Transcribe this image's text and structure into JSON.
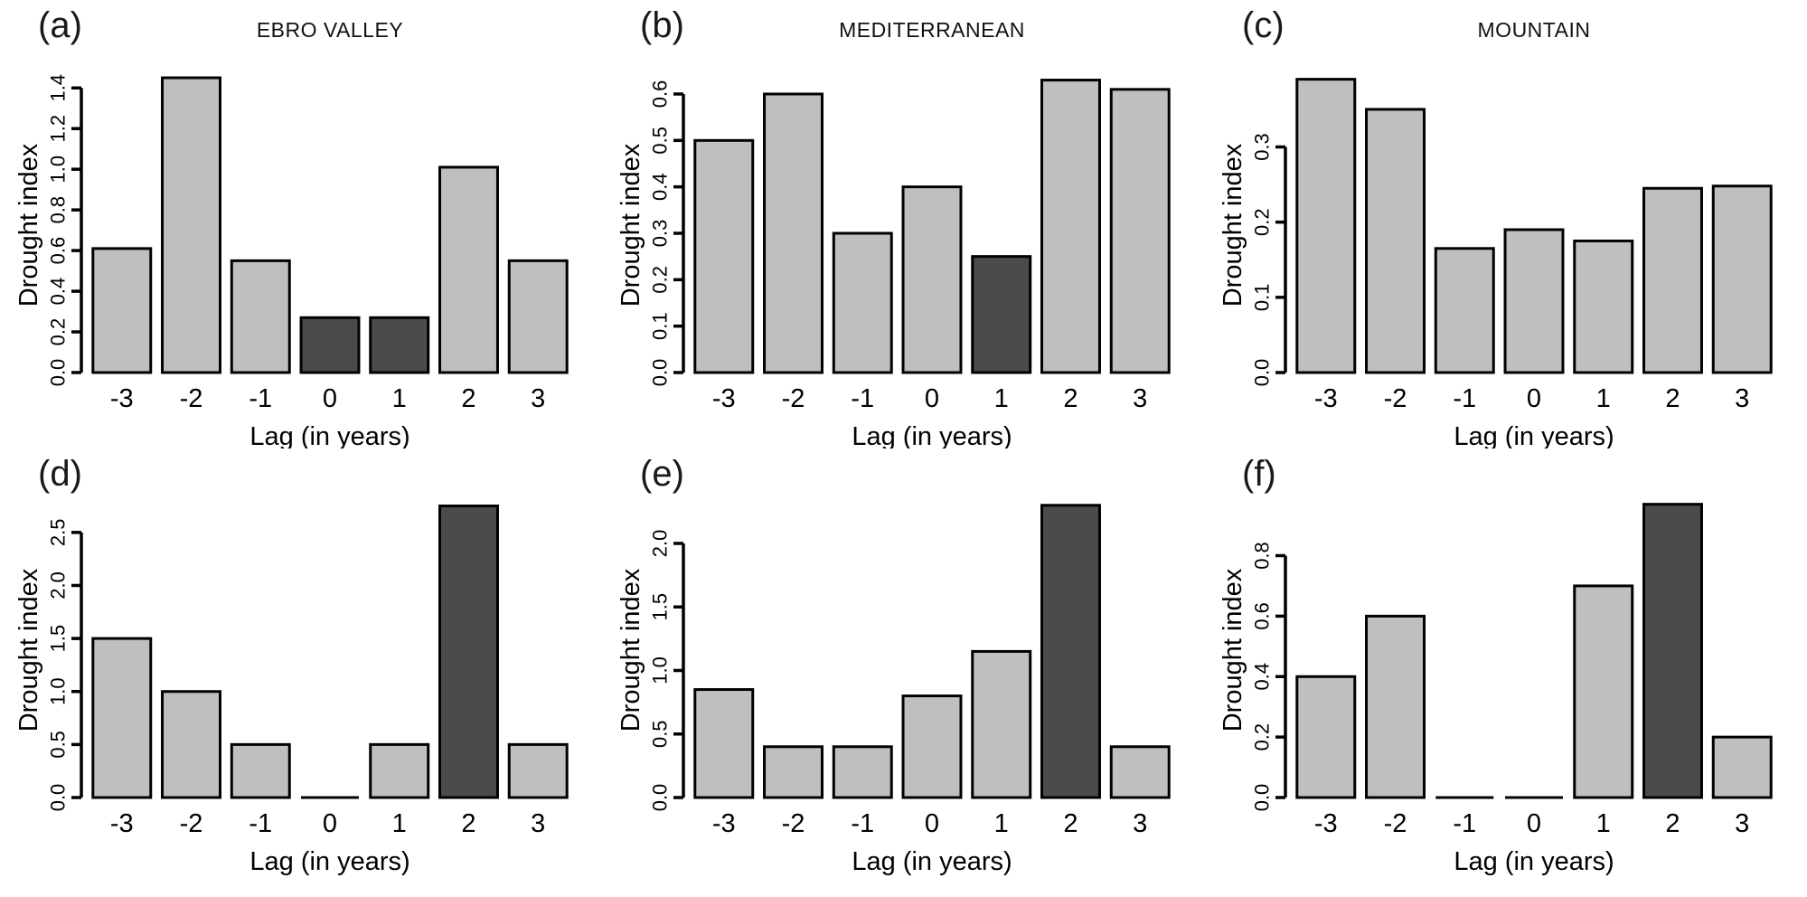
{
  "colors": {
    "bar_light": "#bfbfbf",
    "bar_dark": "#4b4b4b",
    "axis": "#000000",
    "background": "#ffffff"
  },
  "chart_data": [
    {
      "type": "bar",
      "panel_label": "(a)",
      "title": "EBRO VALLEY",
      "xlabel": "Lag (in years)",
      "ylabel": "Drought index",
      "categories": [
        "-3",
        "-2",
        "-1",
        "0",
        "1",
        "2",
        "3"
      ],
      "values": [
        0.61,
        1.45,
        0.55,
        0.27,
        0.27,
        1.01,
        0.55
      ],
      "bar_styles": [
        "light",
        "light",
        "light",
        "dark",
        "dark",
        "light",
        "light"
      ],
      "yticks": [
        0,
        0.2,
        0.4,
        0.6,
        0.8,
        1.0,
        1.2,
        1.4
      ],
      "ytick_labels": [
        "0.0",
        "0.2",
        "0.4",
        "0.6",
        "0.8",
        "1.0",
        "1.2",
        "1.4"
      ],
      "ylim": [
        0,
        1.45
      ],
      "grid": false,
      "legend": false
    },
    {
      "type": "bar",
      "panel_label": "(b)",
      "title": "MEDITERRANEAN",
      "xlabel": "Lag (in years)",
      "ylabel": "Drought index",
      "categories": [
        "-3",
        "-2",
        "-1",
        "0",
        "1",
        "2",
        "3"
      ],
      "values": [
        0.5,
        0.6,
        0.3,
        0.4,
        0.25,
        0.63,
        0.61
      ],
      "bar_styles": [
        "light",
        "light",
        "light",
        "light",
        "dark",
        "light",
        "light"
      ],
      "yticks": [
        0,
        0.1,
        0.2,
        0.3,
        0.4,
        0.5,
        0.6
      ],
      "ytick_labels": [
        "0.0",
        "0.1",
        "0.2",
        "0.3",
        "0.4",
        "0.5",
        "0.6"
      ],
      "ylim": [
        0,
        0.635
      ],
      "grid": false,
      "legend": false
    },
    {
      "type": "bar",
      "panel_label": "(c)",
      "title": "MOUNTAIN",
      "xlabel": "Lag (in years)",
      "ylabel": "Drought index",
      "categories": [
        "-3",
        "-2",
        "-1",
        "0",
        "1",
        "2",
        "3"
      ],
      "values": [
        0.39,
        0.35,
        0.165,
        0.19,
        0.175,
        0.245,
        0.248
      ],
      "bar_styles": [
        "light",
        "light",
        "light",
        "light",
        "light",
        "light",
        "light"
      ],
      "yticks": [
        0,
        0.1,
        0.2,
        0.3
      ],
      "ytick_labels": [
        "0.0",
        "0.1",
        "0.2",
        "0.3"
      ],
      "ylim": [
        0,
        0.392
      ],
      "grid": false,
      "legend": false
    },
    {
      "type": "bar",
      "panel_label": "(d)",
      "xlabel": "Lag (in years)",
      "ylabel": "Drought index",
      "categories": [
        "-3",
        "-2",
        "-1",
        "0",
        "1",
        "2",
        "3"
      ],
      "values": [
        1.5,
        1.0,
        0.5,
        0.0,
        0.5,
        2.75,
        0.5
      ],
      "bar_styles": [
        "light",
        "light",
        "light",
        "light",
        "light",
        "dark",
        "light"
      ],
      "yticks": [
        0,
        0.5,
        1.0,
        1.5,
        2.0,
        2.5
      ],
      "ytick_labels": [
        "0.0",
        "0.5",
        "1.0",
        "1.5",
        "2.0",
        "2.5"
      ],
      "ylim": [
        0,
        2.78
      ],
      "grid": false,
      "legend": false
    },
    {
      "type": "bar",
      "panel_label": "(e)",
      "xlabel": "Lag (in years)",
      "ylabel": "Drought index",
      "categories": [
        "-3",
        "-2",
        "-1",
        "0",
        "1",
        "2",
        "3"
      ],
      "values": [
        0.85,
        0.4,
        0.4,
        0.8,
        1.15,
        2.3,
        0.4
      ],
      "bar_styles": [
        "light",
        "light",
        "light",
        "light",
        "light",
        "dark",
        "light"
      ],
      "yticks": [
        0,
        0.5,
        1.0,
        1.5,
        2.0
      ],
      "ytick_labels": [
        "0.0",
        "0.5",
        "1.0",
        "1.5",
        "2.0"
      ],
      "ylim": [
        0,
        2.32
      ],
      "grid": false,
      "legend": false
    },
    {
      "type": "bar",
      "panel_label": "(f)",
      "xlabel": "Lag (in years)",
      "ylabel": "Drought index",
      "categories": [
        "-3",
        "-2",
        "-1",
        "0",
        "1",
        "2",
        "3"
      ],
      "values": [
        0.4,
        0.6,
        0.0,
        0.0,
        0.7,
        0.97,
        0.2
      ],
      "bar_styles": [
        "light",
        "light",
        "light",
        "light",
        "light",
        "dark",
        "light"
      ],
      "yticks": [
        0,
        0.2,
        0.4,
        0.6,
        0.8
      ],
      "ytick_labels": [
        "0.0",
        "0.2",
        "0.4",
        "0.6",
        "0.8"
      ],
      "ylim": [
        0,
        0.975
      ],
      "grid": false,
      "legend": false
    }
  ]
}
